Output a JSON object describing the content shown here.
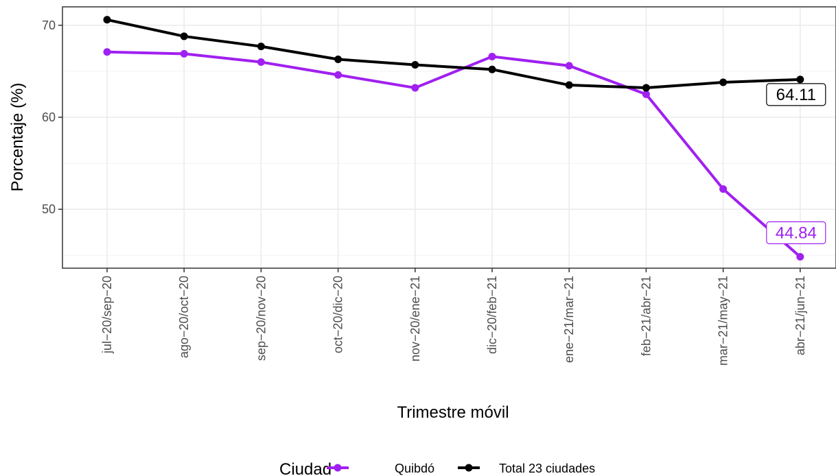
{
  "chart_data": {
    "type": "line",
    "title": "",
    "xlabel": "Trimestre móvil",
    "ylabel": "Porcentaje (%)",
    "categories": [
      "jul−20/sep−20",
      "ago−20/oct−20",
      "sep−20/nov−20",
      "oct−20/dic−20",
      "nov−20/ene−21",
      "dic−20/feb−21",
      "ene−21/mar−21",
      "feb−21/abr−21",
      "mar−21/may−21",
      "abr−21/jun−21"
    ],
    "ylim": [
      43.6,
      72.0
    ],
    "yticks": [
      50,
      60,
      70
    ],
    "grid": true,
    "legend": {
      "title": "Ciudad",
      "position": "bottom"
    },
    "series": [
      {
        "name": "Quibdó",
        "color": "#a020f0",
        "values": [
          67.1,
          66.9,
          66.0,
          64.6,
          63.2,
          66.6,
          65.6,
          62.5,
          52.2,
          44.84
        ],
        "end_label": "44.84"
      },
      {
        "name": "Total 23 ciudades",
        "color": "#000000",
        "values": [
          70.6,
          68.8,
          67.7,
          66.3,
          65.7,
          65.2,
          63.5,
          63.2,
          63.8,
          64.11
        ],
        "end_label": "64.11"
      }
    ]
  }
}
